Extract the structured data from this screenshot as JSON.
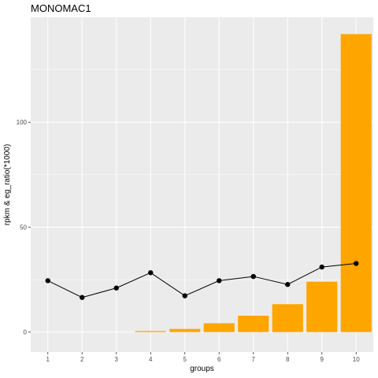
{
  "chart_data": {
    "type": "bar",
    "title": "MONOMAC1",
    "xlabel": "groups",
    "ylabel": "rpkm & eg_ratio(*1000)",
    "categories": [
      "1",
      "2",
      "3",
      "4",
      "5",
      "6",
      "7",
      "8",
      "9",
      "10"
    ],
    "series": [
      {
        "type": "bar",
        "values": [
          0,
          0,
          0,
          0.5,
          1.5,
          4.2,
          7.8,
          13.3,
          24.0,
          142.0
        ]
      },
      {
        "type": "line",
        "values": [
          24.5,
          16.5,
          21.0,
          28.3,
          17.3,
          24.5,
          26.5,
          22.7,
          31.0,
          32.7
        ]
      }
    ],
    "y_ticks": [
      0,
      50,
      100
    ],
    "ylim": [
      -9.5,
      150
    ],
    "grid": true,
    "colors": {
      "panel": "#ebebeb",
      "grid_major": "#ffffff",
      "bar": "#ffa500",
      "line": "#000000"
    }
  }
}
